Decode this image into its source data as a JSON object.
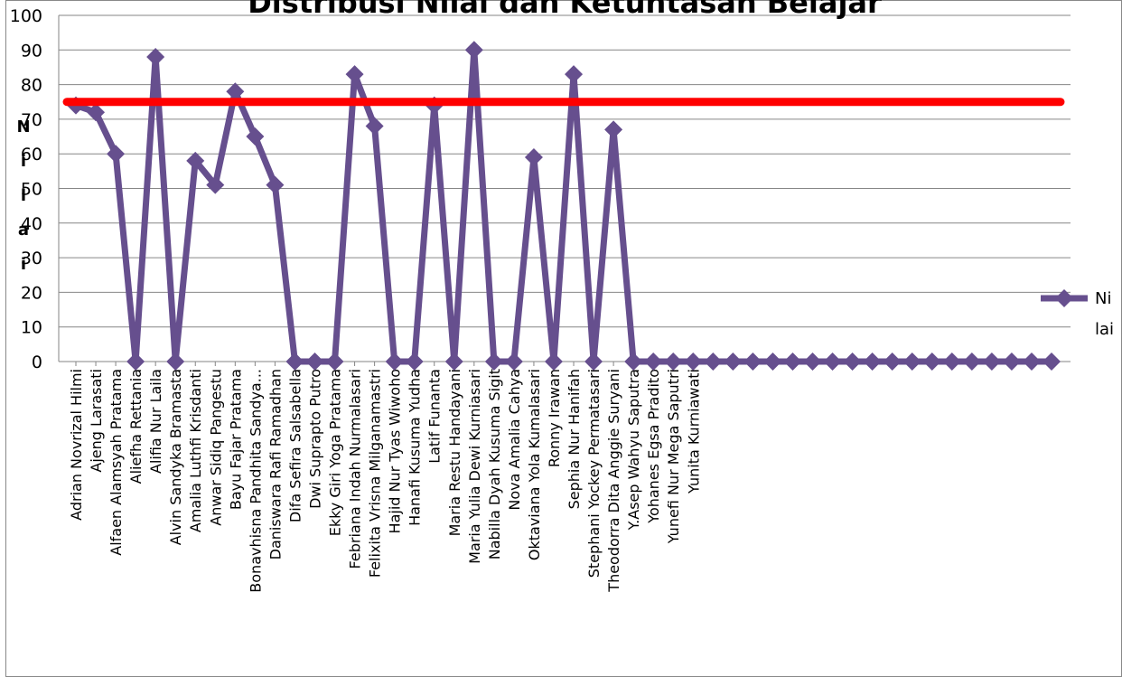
{
  "chart_data": {
    "type": "line",
    "title": "Distribusi Nilai dan Ketuntasan Belajar",
    "ylabel": "Nilai",
    "xlabel": "",
    "ylim": [
      0,
      100
    ],
    "yticks": [
      0,
      10,
      20,
      30,
      40,
      50,
      60,
      70,
      80,
      90,
      100
    ],
    "grid": true,
    "legend_position": "right",
    "categories": [
      "Adrian Novrizal Hilmi",
      "Ajeng Larasati",
      "Alfaen Alamsyah Pratama",
      "Aliefha Rettania",
      "Alifia Nur Laila",
      "Alvin Sandyka Bramasta",
      "Amalia Luthfi Krisdanti",
      "Anwar Sidiq Pangestu",
      "Bayu Fajar Pratama",
      "Bonavhisna Pandhita Sandya...",
      "Daniswara Rafi Ramadhan",
      "Difa Sefira Salsabella",
      "Dwi Suprapto Putro",
      "Ekky Giri Yoga Pratama",
      "Febriana Indah Nurmalasari",
      "Felixita Vrisna Milganamastri",
      "Hajid Nur Tyas Wiwoho",
      "Hanafi Kusuma Yudha",
      "Latif Funanta",
      "Maria Restu Handayani",
      "Maria Yulia Dewi Kurniasari",
      "Nabilla Dyah Kusuma Sigit",
      "Nova Amalia Cahya",
      "Oktaviana Yola Kumalasari",
      "Ronny Irawan",
      "Sephia Nur Hanifah",
      "Stephani Yockey Permatasari",
      "Theodorra Dita Anggie Suryani",
      "Y.Asep Wahyu Saputra",
      "Yohanes Egsa Pradito",
      "Yunefi Nur Mega Saputri",
      "Yunita Kurniawati",
      "",
      "",
      "",
      "",
      "",
      "",
      "",
      "",
      "",
      "",
      "",
      "",
      "",
      "",
      "",
      "",
      "",
      ""
    ],
    "series": [
      {
        "name": "Nilai",
        "color": "#664F8E",
        "marker": "diamond",
        "values": [
          74,
          72,
          60,
          0,
          88,
          0,
          58,
          51,
          78,
          65,
          51,
          0,
          0,
          0,
          83,
          68,
          0,
          0,
          74,
          0,
          90,
          0,
          0,
          59,
          0,
          83,
          0,
          67,
          0,
          0,
          0,
          0,
          0,
          0,
          0,
          0,
          0,
          0,
          0,
          0,
          0,
          0,
          0,
          0,
          0,
          0,
          0,
          0,
          0,
          0
        ]
      }
    ],
    "reference_line": {
      "value": 75,
      "color": "#FF0000"
    }
  }
}
